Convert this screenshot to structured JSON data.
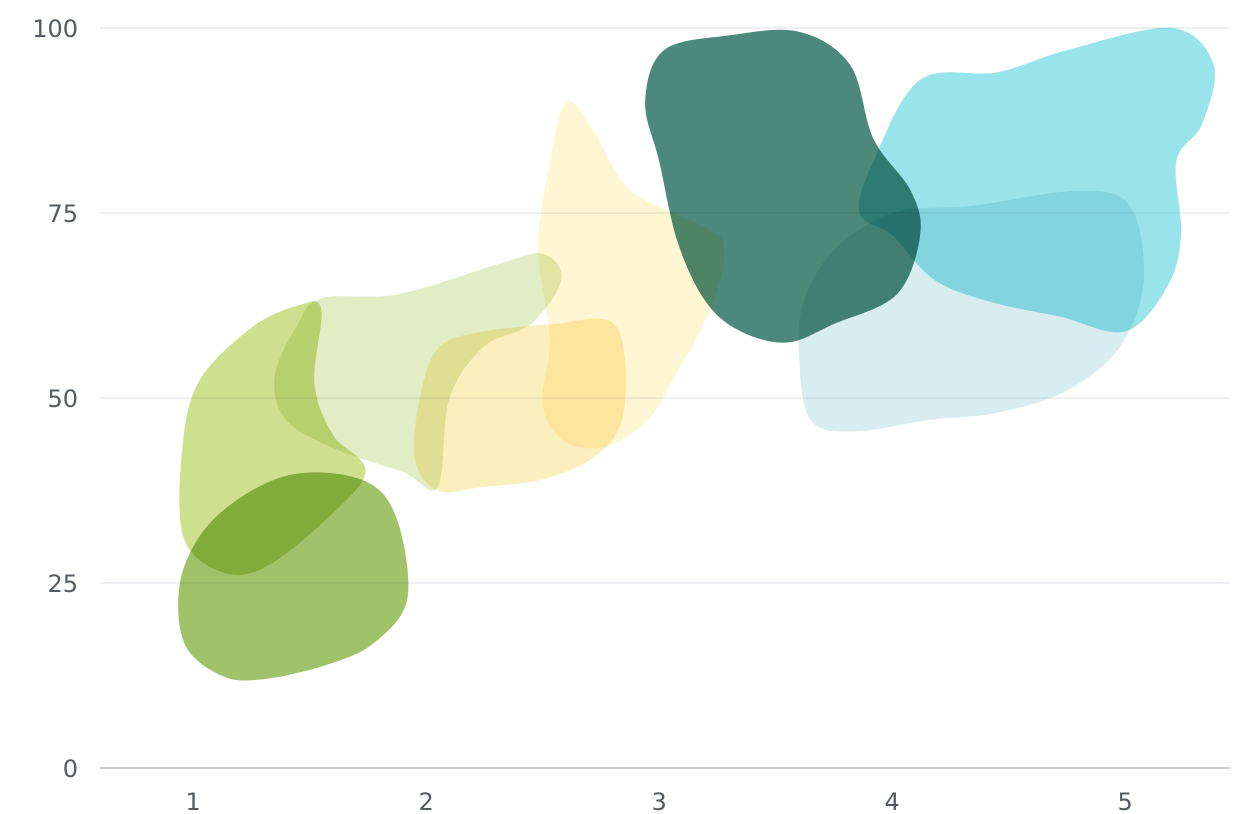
{
  "chart_data": {
    "type": "area",
    "title": "",
    "xlabel": "",
    "ylabel": "",
    "xlim": [
      0.6,
      5.45
    ],
    "ylim": [
      0,
      100
    ],
    "grid": true,
    "x_ticks": [
      "1",
      "2",
      "3",
      "4",
      "5"
    ],
    "y_ticks": [
      "0",
      "25",
      "50",
      "75",
      "100"
    ],
    "series": [
      {
        "color": "#8fb84f",
        "opacity": 0.85,
        "points": [
          [
            1.4,
            39.5
          ],
          [
            1.72,
            39
          ],
          [
            1.87,
            34
          ],
          [
            1.92,
            23
          ],
          [
            1.78,
            17
          ],
          [
            1.58,
            14
          ],
          [
            1.3,
            12
          ],
          [
            1.12,
            12.5
          ],
          [
            0.96,
            17
          ],
          [
            0.95,
            26
          ],
          [
            1.1,
            34
          ]
        ]
      },
      {
        "color": "#b9d35e",
        "opacity": 0.7,
        "points": [
          [
            1.55,
            62
          ],
          [
            1.52,
            52
          ],
          [
            1.6,
            45
          ],
          [
            1.74,
            40
          ],
          [
            1.55,
            33
          ],
          [
            1.3,
            27
          ],
          [
            1.12,
            26.5
          ],
          [
            0.96,
            31
          ],
          [
            0.95,
            42
          ],
          [
            1.02,
            52
          ],
          [
            1.25,
            59.5
          ],
          [
            1.45,
            62.5
          ]
        ]
      },
      {
        "color": "#d5e5ad",
        "opacity": 0.7,
        "points": [
          [
            1.55,
            63.5
          ],
          [
            1.88,
            64
          ],
          [
            2.3,
            68
          ],
          [
            2.5,
            69.5
          ],
          [
            2.58,
            66
          ],
          [
            2.45,
            60
          ],
          [
            2.25,
            57
          ],
          [
            2.1,
            50
          ],
          [
            2.05,
            38
          ],
          [
            1.9,
            40
          ],
          [
            1.62,
            43
          ],
          [
            1.4,
            47
          ],
          [
            1.35,
            53
          ],
          [
            1.45,
            60
          ]
        ]
      },
      {
        "color": "#fff4c8",
        "opacity": 0.8,
        "points": [
          [
            2.6,
            90
          ],
          [
            2.72,
            86
          ],
          [
            2.88,
            78
          ],
          [
            3.2,
            73
          ],
          [
            3.28,
            70
          ],
          [
            3.22,
            62
          ],
          [
            3.05,
            52
          ],
          [
            2.95,
            47
          ],
          [
            2.78,
            43.5
          ],
          [
            2.6,
            44
          ],
          [
            2.5,
            49
          ],
          [
            2.53,
            58
          ],
          [
            2.48,
            70
          ],
          [
            2.52,
            80
          ]
        ]
      },
      {
        "color": "#fbe8a2",
        "opacity": 0.7,
        "points": [
          [
            2.25,
            59
          ],
          [
            2.55,
            60
          ],
          [
            2.78,
            60.5
          ],
          [
            2.85,
            56
          ],
          [
            2.84,
            47
          ],
          [
            2.72,
            42
          ],
          [
            2.5,
            39
          ],
          [
            2.25,
            38
          ],
          [
            2.05,
            37.5
          ],
          [
            1.95,
            42
          ],
          [
            1.98,
            51
          ],
          [
            2.06,
            57
          ]
        ]
      },
      {
        "color": "#2e7464",
        "opacity": 0.85,
        "points": [
          [
            3.02,
            97
          ],
          [
            3.3,
            99
          ],
          [
            3.6,
            99.5
          ],
          [
            3.82,
            95
          ],
          [
            3.92,
            85
          ],
          [
            4.08,
            78
          ],
          [
            4.12,
            72
          ],
          [
            4.02,
            64
          ],
          [
            3.75,
            60
          ],
          [
            3.55,
            57.5
          ],
          [
            3.35,
            59
          ],
          [
            3.2,
            63
          ],
          [
            3.08,
            71
          ],
          [
            3.0,
            82
          ],
          [
            2.94,
            90
          ]
        ]
      },
      {
        "color": "#7fdde6",
        "opacity": 0.8,
        "points": [
          [
            4.12,
            93
          ],
          [
            4.45,
            94
          ],
          [
            4.75,
            97
          ],
          [
            5.2,
            100
          ],
          [
            5.38,
            95
          ],
          [
            5.33,
            87
          ],
          [
            5.22,
            82
          ],
          [
            5.24,
            72
          ],
          [
            5.18,
            65
          ],
          [
            5.0,
            59
          ],
          [
            4.72,
            61
          ],
          [
            4.42,
            63
          ],
          [
            4.18,
            66
          ],
          [
            4.0,
            72
          ],
          [
            3.86,
            75
          ],
          [
            3.92,
            82
          ]
        ]
      },
      {
        "color": "#cbe7ee",
        "opacity": 0.75,
        "points": [
          [
            4.0,
            75
          ],
          [
            4.35,
            76
          ],
          [
            4.8,
            78
          ],
          [
            5.02,
            76
          ],
          [
            5.08,
            66
          ],
          [
            4.98,
            57
          ],
          [
            4.75,
            51
          ],
          [
            4.45,
            48
          ],
          [
            4.15,
            47
          ],
          [
            3.85,
            45.5
          ],
          [
            3.65,
            47
          ],
          [
            3.6,
            56
          ],
          [
            3.62,
            63
          ],
          [
            3.75,
            70
          ]
        ]
      }
    ]
  }
}
